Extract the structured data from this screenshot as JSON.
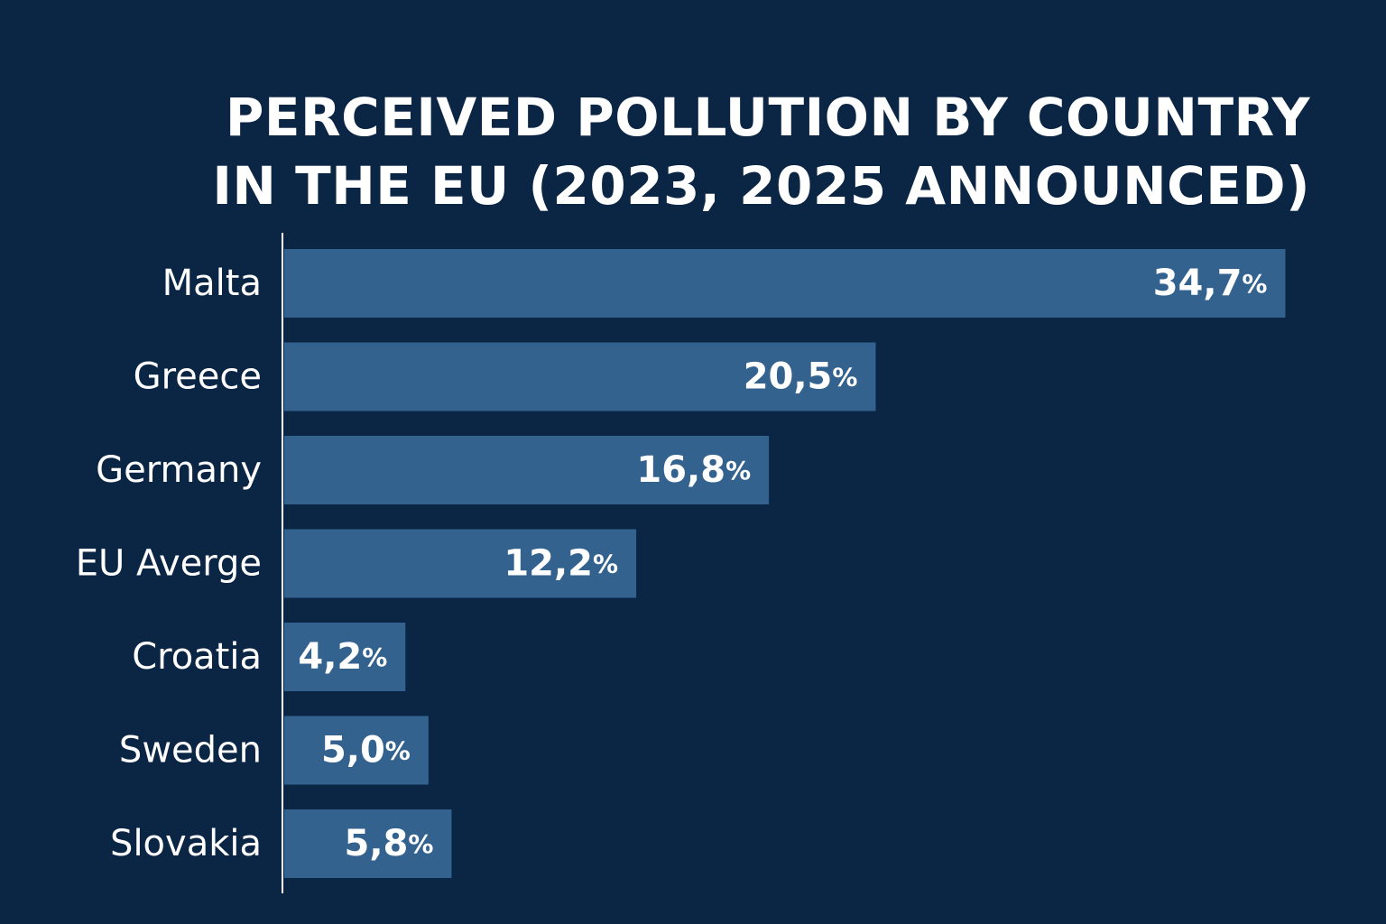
{
  "chart_data": {
    "type": "bar",
    "orientation": "horizontal",
    "title_lines": [
      "PERCEIVED POLLUTION BY COUNTRY",
      "IN THE EU (2023, 2025 ANNOUNCED)"
    ],
    "categories": [
      "Malta",
      "Greece",
      "Germany",
      "EU Averge",
      "Croatia",
      "Sweden",
      "Slovakia"
    ],
    "values": [
      34.7,
      20.5,
      16.8,
      12.2,
      4.2,
      5.0,
      5.8
    ],
    "value_labels": [
      "34,7",
      "20,5",
      "16,8",
      "12,2",
      "4,2",
      "5,0",
      "5,8"
    ],
    "value_suffix": "%",
    "xlim": [
      0,
      38
    ],
    "grid": false,
    "colors": {
      "background": "#0b2545",
      "bar": "#33628f",
      "text": "#ffffff",
      "axis": "#ffffff"
    }
  }
}
